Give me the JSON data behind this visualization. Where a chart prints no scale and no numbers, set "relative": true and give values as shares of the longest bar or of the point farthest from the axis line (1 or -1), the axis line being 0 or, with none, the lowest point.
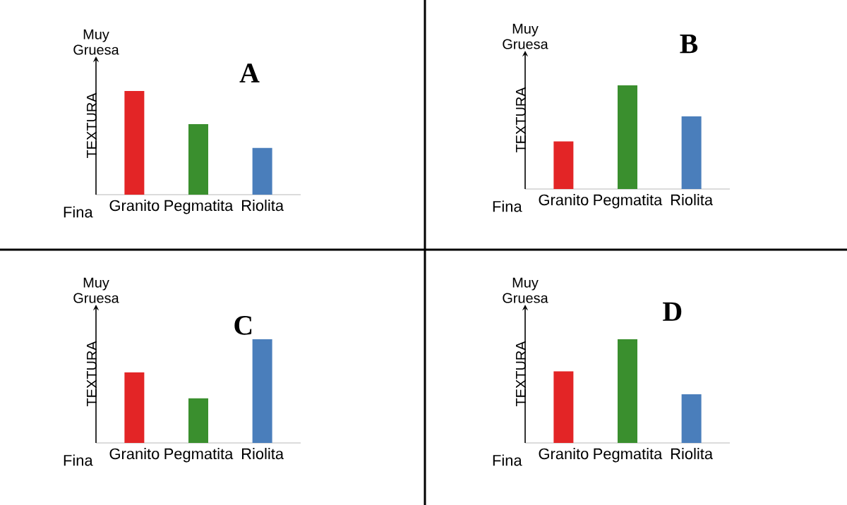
{
  "chart_data": [
    {
      "type": "bar",
      "relative": true,
      "title": "A",
      "ylabel": "TEXTURA",
      "categories": [
        "Granito",
        "Pegmatita",
        "Riolita"
      ],
      "values": [
        1,
        0.68,
        0.45
      ],
      "colors": [
        "#e32526",
        "#3a8f2e",
        "#4a7ebb"
      ],
      "annotations": [
        "Muy Gruesa",
        "Fina"
      ]
    },
    {
      "type": "bar",
      "relative": true,
      "title": "B",
      "ylabel": "TEXTURA",
      "categories": [
        "Granito",
        "Pegmatita",
        "Riolita"
      ],
      "values": [
        0.46,
        1,
        0.7
      ],
      "colors": [
        "#e32526",
        "#3a8f2e",
        "#4a7ebb"
      ],
      "annotations": [
        "Muy Gruesa",
        "Fina"
      ]
    },
    {
      "type": "bar",
      "relative": true,
      "title": "C",
      "ylabel": "TEXTURA",
      "categories": [
        "Granito",
        "Pegmatita",
        "Riolita"
      ],
      "values": [
        0.68,
        0.43,
        1
      ],
      "colors": [
        "#e32526",
        "#3a8f2e",
        "#4a7ebb"
      ],
      "annotations": [
        "Muy Gruesa",
        "Fina"
      ]
    },
    {
      "type": "bar",
      "relative": true,
      "title": "D",
      "ylabel": "TEXTURA",
      "categories": [
        "Granito",
        "Pegmatita",
        "Riolita"
      ],
      "values": [
        0.69,
        1,
        0.47
      ],
      "colors": [
        "#e32526",
        "#3a8f2e",
        "#4a7ebb"
      ],
      "annotations": [
        "Muy Gruesa",
        "Fina"
      ]
    }
  ]
}
